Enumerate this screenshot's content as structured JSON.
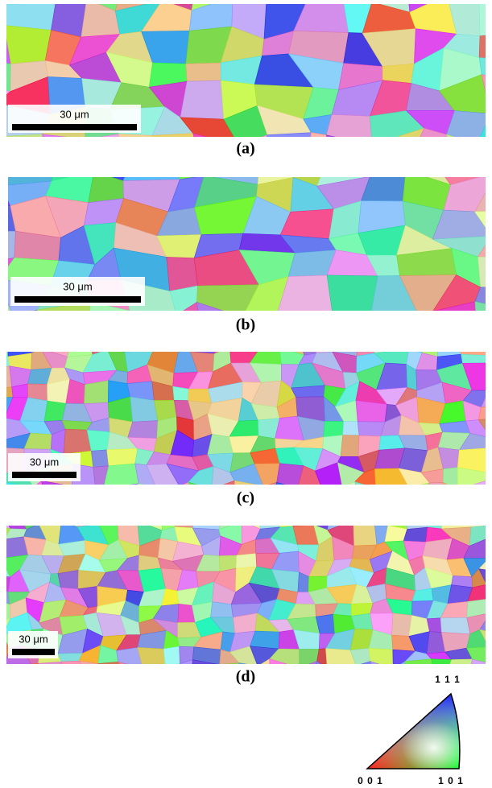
{
  "panels": [
    {
      "label": "(a)",
      "scale_bar": "30 μm"
    },
    {
      "label": "(b)",
      "scale_bar": "30 μm"
    },
    {
      "label": "(c)",
      "scale_bar": "30 μm"
    },
    {
      "label": "(d)",
      "scale_bar": "30 μm"
    }
  ],
  "legend": {
    "top": "1 1 1",
    "bottom_left": "0 0 1",
    "bottom_right": "1 0 1"
  }
}
